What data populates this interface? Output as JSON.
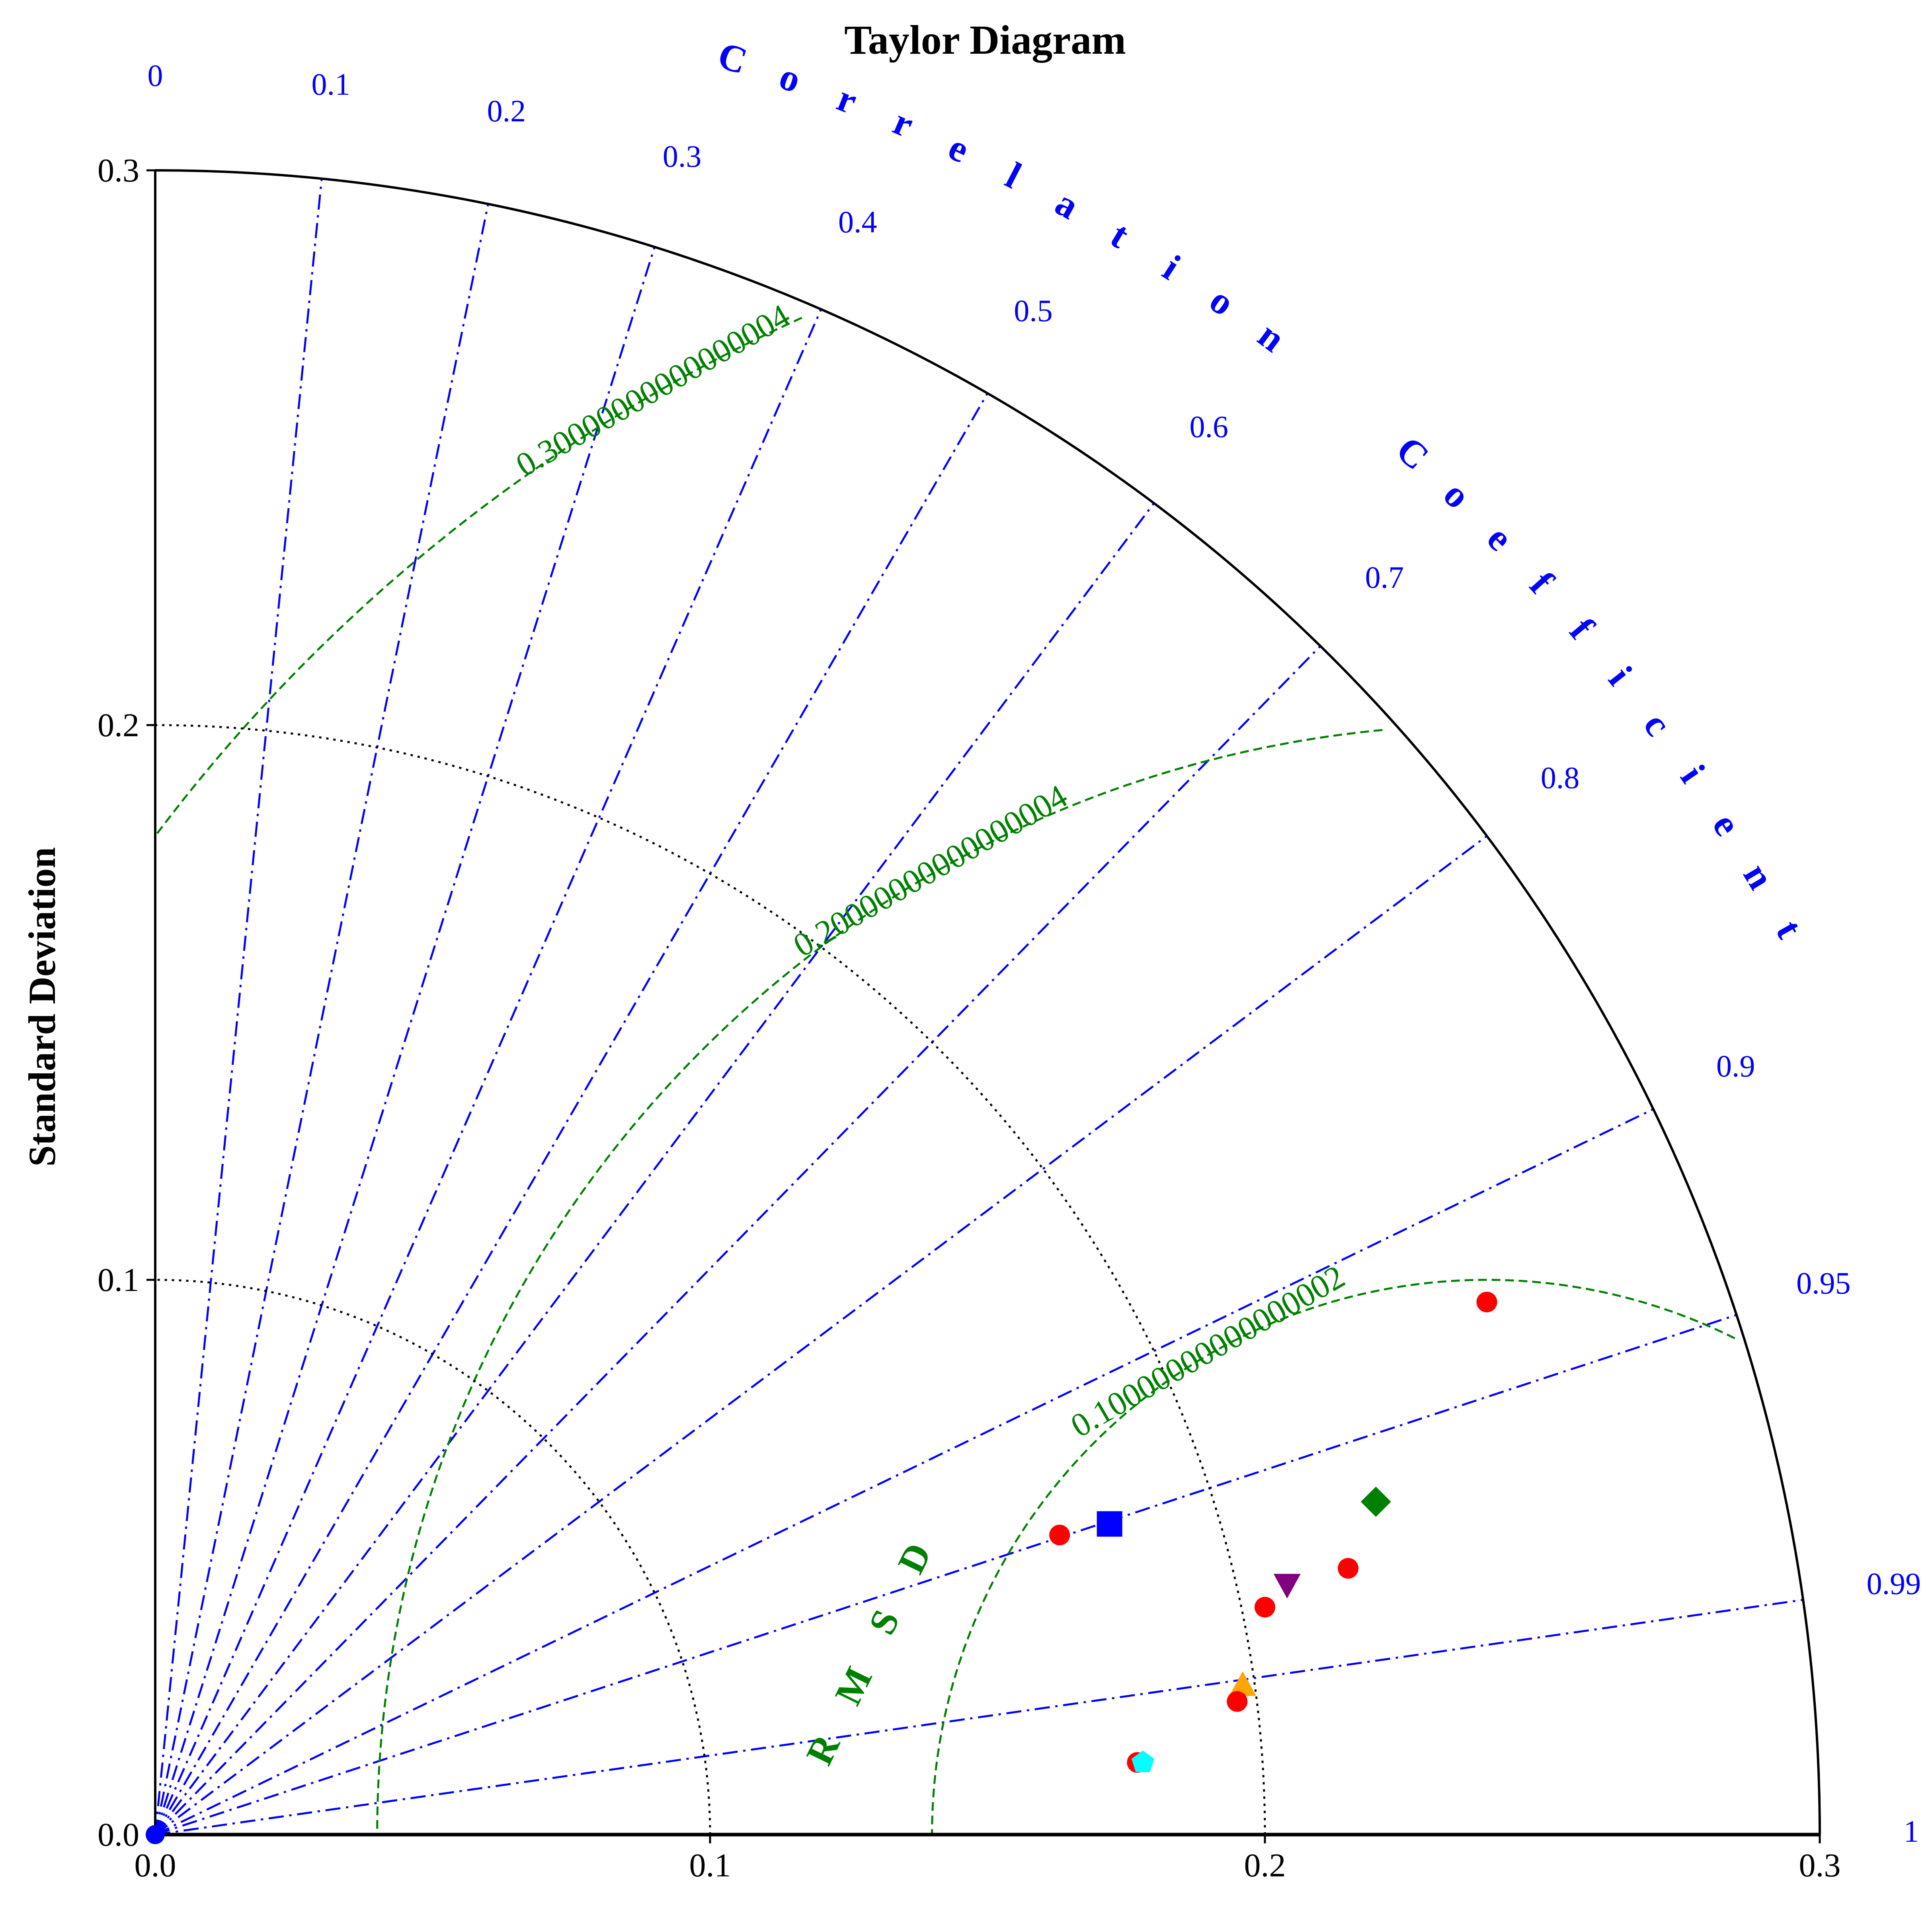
{
  "chart_data": {
    "type": "scatter",
    "subtype": "taylor-diagram",
    "title": "Taylor Diagram",
    "ylabel": "Standard Deviation",
    "corr_axis_title": "Correlation Coefficient",
    "rms_axis_title": "RMSD",
    "std_range": [
      0.0,
      0.3
    ],
    "std_ticks": [
      "0.0",
      "0.1",
      "0.2",
      "0.3"
    ],
    "std_tick_values": [
      0.0,
      0.1,
      0.2,
      0.3
    ],
    "corr_ticks": [
      {
        "value": 0,
        "label": "0"
      },
      {
        "value": 0.1,
        "label": "0.1"
      },
      {
        "value": 0.2,
        "label": "0.2"
      },
      {
        "value": 0.3,
        "label": "0.3"
      },
      {
        "value": 0.4,
        "label": "0.4"
      },
      {
        "value": 0.5,
        "label": "0.5"
      },
      {
        "value": 0.6,
        "label": "0.6"
      },
      {
        "value": 0.7,
        "label": "0.7"
      },
      {
        "value": 0.8,
        "label": "0.8"
      },
      {
        "value": 0.9,
        "label": "0.9"
      },
      {
        "value": 0.95,
        "label": "0.95"
      },
      {
        "value": 0.99,
        "label": "0.99"
      },
      {
        "value": 1,
        "label": "1"
      }
    ],
    "std_arcs": [
      0.1,
      0.2
    ],
    "reference_std": 0.24,
    "rms_contours": [
      {
        "value": 0.1,
        "label": "0.10000000000000002"
      },
      {
        "value": 0.2,
        "label": "0.20000000000000004"
      },
      {
        "value": 0.3,
        "label": "0.30000000000000004"
      }
    ],
    "points": [
      {
        "x": 0.24,
        "y": 0.096,
        "marker": "circle",
        "color": "#ff0000"
      },
      {
        "x": 0.163,
        "y": 0.054,
        "marker": "circle",
        "color": "#ff0000"
      },
      {
        "x": 0.172,
        "y": 0.056,
        "marker": "square",
        "color": "#0000ff"
      },
      {
        "x": 0.22,
        "y": 0.06,
        "marker": "diamond",
        "color": "#008000"
      },
      {
        "x": 0.215,
        "y": 0.048,
        "marker": "circle",
        "color": "#ff0000"
      },
      {
        "x": 0.204,
        "y": 0.045,
        "marker": "triangle-down",
        "color": "#800080"
      },
      {
        "x": 0.2,
        "y": 0.041,
        "marker": "circle",
        "color": "#ff0000"
      },
      {
        "x": 0.196,
        "y": 0.027,
        "marker": "triangle-up",
        "color": "#ffa500"
      },
      {
        "x": 0.195,
        "y": 0.024,
        "marker": "circle",
        "color": "#ff0000"
      },
      {
        "x": 0.177,
        "y": 0.013,
        "marker": "circle",
        "color": "#ff0000"
      },
      {
        "x": 0.178,
        "y": 0.013,
        "marker": "pentagon",
        "color": "#00ffff"
      }
    ],
    "colors": {
      "corr_lines": "#0000ff",
      "rms_contours": "#008000",
      "std_arcs": "#000000"
    }
  }
}
